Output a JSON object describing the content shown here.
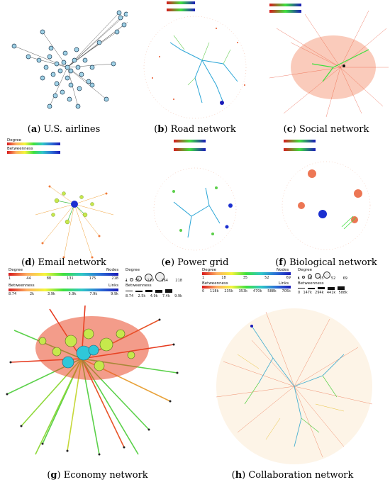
{
  "panels": [
    {
      "letter": "a",
      "label": "U.S. airlines"
    },
    {
      "letter": "b",
      "label": "Road network"
    },
    {
      "letter": "c",
      "label": "Social network"
    },
    {
      "letter": "d",
      "label": "Email network"
    },
    {
      "letter": "e",
      "label": "Power grid"
    },
    {
      "letter": "f",
      "label": "Biological network"
    },
    {
      "letter": "g",
      "label": "Economy network"
    },
    {
      "letter": "h",
      "label": "Collaboration network"
    }
  ],
  "legends": {
    "g": {
      "degree_title": "Degree",
      "nodes_title": "Nodes",
      "betweenness_title": "Betweenness",
      "links_title": "Links",
      "degree_ticks": [
        "1",
        "44",
        "88",
        "131",
        "175",
        "218"
      ],
      "node_ticks": [
        "1",
        "55",
        "110",
        "164",
        "218"
      ],
      "betweenness_ticks": [
        "8.74",
        "2k",
        "3.9k",
        "5.9k",
        "7.9k",
        "9.9k"
      ],
      "link_ticks": [
        "8.74",
        "2.5k",
        "4.9k",
        "7.4k",
        "9.9k"
      ]
    },
    "h": {
      "degree_title": "Degree",
      "nodes_title": "Nodes",
      "betweenness_title": "Betweenness",
      "links_title": "Links",
      "degree_ticks": [
        "1",
        "18",
        "35",
        "52",
        "69"
      ],
      "node_ticks": [
        "1",
        "18",
        "35",
        "52",
        "69"
      ],
      "betweenness_ticks": [
        "0",
        "118k",
        "235k",
        "353k",
        "470k",
        "588k",
        "705k"
      ],
      "link_ticks": [
        "0",
        "147k",
        "294k",
        "441k",
        "588k"
      ]
    },
    "d": {
      "degree_title": "Degree",
      "nodes_title": "Nodes",
      "betweenness_title": "Betweenness",
      "links_title": "Links"
    }
  },
  "colors": {
    "node_fill": "#9fd1e6",
    "node_stroke": "#1f3b52",
    "edge_dark": "#4a4a4a",
    "hub": "#1b2fd0"
  }
}
